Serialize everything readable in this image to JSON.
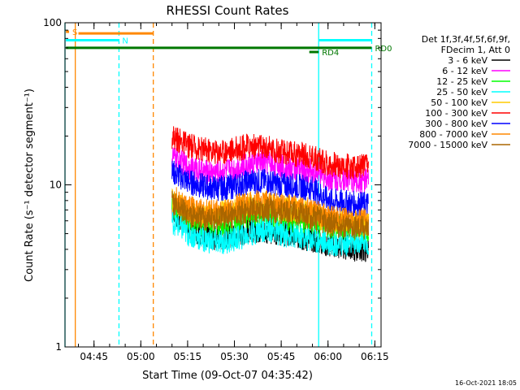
{
  "chart_data": {
    "type": "line",
    "title": "RHESSI Count Rates",
    "xlabel": "Start Time (09-Oct-07 04:35:42)",
    "ylabel": "Count Rate (s⁻¹ detector segment⁻¹)",
    "y_scale": "log",
    "ylim": [
      1,
      100
    ],
    "y_ticks": [
      {
        "value": 1,
        "label": "1"
      },
      {
        "value": 10,
        "label": "10"
      },
      {
        "value": 100,
        "label": "100"
      }
    ],
    "xlim": [
      "04:35:42",
      "06:17:00"
    ],
    "x_ticks": [
      {
        "time": "04:45",
        "label": "04:45"
      },
      {
        "time": "05:00",
        "label": "05:00"
      },
      {
        "time": "05:15",
        "label": "05:15"
      },
      {
        "time": "05:30",
        "label": "05:30"
      },
      {
        "time": "05:45",
        "label": "05:45"
      },
      {
        "time": "06:00",
        "label": "06:00"
      },
      {
        "time": "06:15",
        "label": "06:15"
      }
    ],
    "legend": {
      "placement": "right",
      "header": [
        "Det 1f,3f,4f,5f,6f,9f,",
        "FDecim 1, Att 0"
      ]
    },
    "series": [
      {
        "name": "3 - 6 keV",
        "color": "#000000",
        "x": [
          "05:10",
          "05:15",
          "05:20",
          "05:25",
          "05:30",
          "05:35",
          "05:40",
          "05:45",
          "05:50",
          "05:55",
          "06:00",
          "06:05",
          "06:10",
          "06:13"
        ],
        "y": [
          7.0,
          5.6,
          4.9,
          4.7,
          4.9,
          5.3,
          5.2,
          5.0,
          4.8,
          4.6,
          4.3,
          4.1,
          4.0,
          4.0
        ]
      },
      {
        "name": "6 - 12 keV",
        "color": "#ff00ff",
        "x": [
          "05:10",
          "05:15",
          "05:20",
          "05:25",
          "05:30",
          "05:35",
          "05:40",
          "05:45",
          "05:50",
          "05:55",
          "06:00",
          "06:05",
          "06:10",
          "06:13"
        ],
        "y": [
          15.0,
          13.0,
          12.0,
          12.0,
          12.5,
          13.5,
          14.0,
          13.0,
          12.5,
          12.0,
          11.0,
          11.0,
          10.5,
          10.5
        ]
      },
      {
        "name": "12 - 25 keV",
        "color": "#00ff00",
        "x": [
          "05:10",
          "05:15",
          "05:20",
          "05:25",
          "05:30",
          "05:35",
          "05:40",
          "05:45",
          "05:50",
          "05:55",
          "06:00",
          "06:05",
          "06:10",
          "06:13"
        ],
        "y": [
          7.5,
          6.2,
          5.8,
          5.7,
          6.0,
          6.5,
          6.8,
          6.2,
          6.0,
          5.8,
          5.6,
          5.5,
          5.3,
          5.3
        ]
      },
      {
        "name": "25 - 50 keV",
        "color": "#00ffff",
        "x": [
          "05:10",
          "05:15",
          "05:20",
          "05:25",
          "05:30",
          "05:35",
          "05:40",
          "05:45",
          "05:50",
          "05:55",
          "06:00",
          "06:05",
          "06:10",
          "06:13"
        ],
        "y": [
          6.0,
          5.0,
          4.6,
          4.4,
          4.6,
          5.0,
          5.4,
          5.0,
          4.8,
          4.6,
          4.4,
          4.3,
          4.4,
          4.4
        ]
      },
      {
        "name": "50 - 100 keV",
        "color": "#ffcc00",
        "x": [
          "05:10",
          "05:15",
          "05:20",
          "05:25",
          "05:30",
          "05:35",
          "05:40",
          "05:45",
          "05:50",
          "05:55",
          "06:00",
          "06:05",
          "06:10",
          "06:13"
        ],
        "y": [
          8.0,
          6.8,
          6.5,
          6.6,
          7.0,
          7.5,
          7.6,
          7.2,
          7.0,
          6.6,
          6.0,
          5.9,
          5.8,
          5.8
        ]
      },
      {
        "name": "100 - 300 keV",
        "color": "#ff0000",
        "x": [
          "05:10",
          "05:15",
          "05:20",
          "05:25",
          "05:30",
          "05:35",
          "05:40",
          "05:45",
          "05:50",
          "05:55",
          "06:00",
          "06:05",
          "06:10",
          "06:13"
        ],
        "y": [
          20.0,
          17.5,
          16.5,
          16.0,
          16.5,
          17.5,
          17.0,
          16.0,
          15.5,
          15.0,
          13.5,
          13.0,
          13.0,
          13.0
        ]
      },
      {
        "name": "300 - 800 keV",
        "color": "#0000ff",
        "x": [
          "05:10",
          "05:15",
          "05:20",
          "05:25",
          "05:30",
          "05:35",
          "05:40",
          "05:45",
          "05:50",
          "05:55",
          "06:00",
          "06:05",
          "06:10",
          "06:13"
        ],
        "y": [
          12.0,
          10.5,
          9.8,
          9.5,
          9.8,
          10.5,
          10.5,
          10.0,
          9.8,
          9.5,
          8.0,
          7.8,
          7.6,
          7.6
        ]
      },
      {
        "name": "800 - 7000 keV",
        "color": "#ff8800",
        "x": [
          "05:10",
          "05:15",
          "05:20",
          "05:25",
          "05:30",
          "05:35",
          "05:40",
          "05:45",
          "05:50",
          "05:55",
          "06:00",
          "06:05",
          "06:10",
          "06:13"
        ],
        "y": [
          8.5,
          7.2,
          6.8,
          6.8,
          7.2,
          7.8,
          7.8,
          7.4,
          7.2,
          6.9,
          6.3,
          6.1,
          6.0,
          6.0
        ]
      },
      {
        "name": "7000 - 15000 keV",
        "color": "#aa6600",
        "x": [
          "05:10",
          "05:15",
          "05:20",
          "05:25",
          "05:30",
          "05:35",
          "05:40",
          "05:45",
          "05:50",
          "05:55",
          "06:00",
          "06:05",
          "06:10",
          "06:13"
        ],
        "y": [
          7.8,
          6.6,
          6.2,
          6.2,
          6.5,
          7.0,
          7.1,
          6.8,
          6.6,
          6.3,
          5.8,
          5.6,
          5.5,
          5.5
        ]
      }
    ],
    "annotations": [
      {
        "label": "N",
        "color": "#00ffff",
        "from": "04:36",
        "to": "04:53",
        "y": 78
      },
      {
        "label": "",
        "color": "#ff8800",
        "from": "04:40",
        "to": "05:04",
        "y": 86
      },
      {
        "label": "RD0",
        "color": "#007700",
        "from": "04:36",
        "to": "06:14",
        "y": 70
      },
      {
        "label": "RD4",
        "color": "#007700",
        "from": "05:54",
        "to": "05:57",
        "y": 66
      },
      {
        "label": "",
        "color": "#00ffff",
        "from": "05:57",
        "to": "06:14",
        "y": 78
      },
      {
        "label": "S",
        "color": "#ff8800",
        "from": "04:36",
        "to": "04:37",
        "y": 88
      }
    ],
    "vertical_markers": [
      {
        "time": "04:35:42",
        "color": "#00ffff",
        "style": "solid"
      },
      {
        "time": "04:39",
        "color": "#ff8800",
        "style": "solid"
      },
      {
        "time": "04:53",
        "color": "#00ffff",
        "style": "dashed"
      },
      {
        "time": "05:04",
        "color": "#ff8800",
        "style": "dashed"
      },
      {
        "time": "05:57",
        "color": "#00ffff",
        "style": "solid"
      },
      {
        "time": "06:14",
        "color": "#00ffff",
        "style": "dashed"
      }
    ]
  },
  "footer": {
    "timestamp": "16-Oct-2021 18:05"
  }
}
